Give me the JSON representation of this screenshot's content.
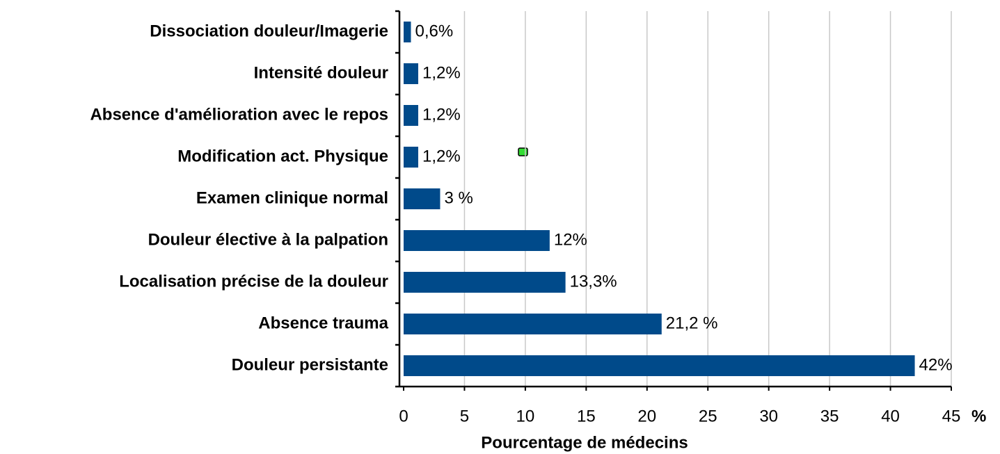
{
  "chart_data": {
    "type": "bar",
    "orientation": "horizontal",
    "categories": [
      "Dissociation douleur/Imagerie",
      "Intensité douleur",
      "Absence d'amélioration avec le repos",
      "Modification act. Physique",
      "Examen clinique normal",
      "Douleur élective à la palpation",
      "Localisation précise de la douleur",
      "Absence trauma",
      "Douleur persistante"
    ],
    "values": [
      0.6,
      1.2,
      1.2,
      1.2,
      3,
      12,
      13.3,
      21.2,
      42
    ],
    "value_labels": [
      "0,6%",
      "1,2%",
      "1,2%",
      "1,2%",
      "3 %",
      "12%",
      "13,3%",
      "21,2 %",
      "42%"
    ],
    "color": "#004a8a",
    "xlim": [
      0,
      45
    ],
    "xticks": [
      0,
      5,
      10,
      15,
      20,
      25,
      30,
      35,
      40,
      45
    ],
    "x_unit": "%",
    "xlabel": "Pourcentage de médecins",
    "grid": true
  }
}
